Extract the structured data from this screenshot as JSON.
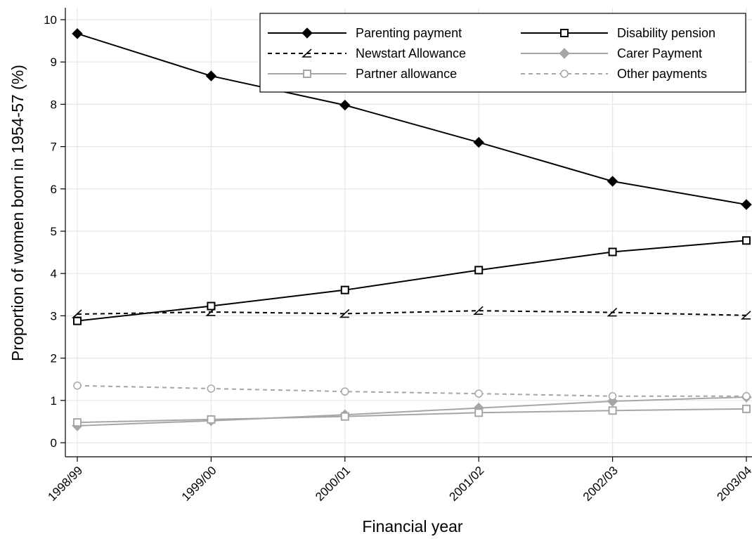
{
  "chart_data": {
    "type": "line",
    "title": "",
    "xlabel": "Financial year",
    "ylabel": "Proportion of women born in 1954-57 (%)",
    "categories": [
      "1998/99",
      "1999/00",
      "2000/01",
      "2001/02",
      "2002/03",
      "2003/04"
    ],
    "ylim": [
      0,
      10
    ],
    "yticks": [
      "0",
      "1",
      "2",
      "3",
      "4",
      "5",
      "6",
      "7",
      "8",
      "9",
      "10"
    ],
    "grid": true,
    "legend_position": "top-right",
    "series": [
      {
        "name": "Parenting payment",
        "values": [
          9.67,
          8.67,
          7.98,
          7.1,
          6.18,
          5.63
        ],
        "color": "#000000",
        "dash": "solid",
        "marker": "diamond-filled"
      },
      {
        "name": "Disability pension",
        "values": [
          2.88,
          3.23,
          3.61,
          4.08,
          4.51,
          4.78
        ],
        "color": "#000000",
        "dash": "solid",
        "marker": "square-open"
      },
      {
        "name": "Newstart Allowance",
        "values": [
          3.04,
          3.09,
          3.05,
          3.12,
          3.08,
          3.01
        ],
        "color": "#000000",
        "dash": "dashed",
        "marker": "angle"
      },
      {
        "name": "Carer Payment",
        "values": [
          0.4,
          0.52,
          0.66,
          0.82,
          0.98,
          1.08
        ],
        "color": "#a6a6a6",
        "dash": "solid",
        "marker": "diamond-filled"
      },
      {
        "name": "Partner allowance",
        "values": [
          0.48,
          0.55,
          0.62,
          0.71,
          0.76,
          0.8
        ],
        "color": "#a6a6a6",
        "dash": "solid",
        "marker": "square-open"
      },
      {
        "name": "Other payments",
        "values": [
          1.35,
          1.28,
          1.21,
          1.16,
          1.1,
          1.1
        ],
        "color": "#a6a6a6",
        "dash": "dashed",
        "marker": "circle-open"
      }
    ]
  }
}
